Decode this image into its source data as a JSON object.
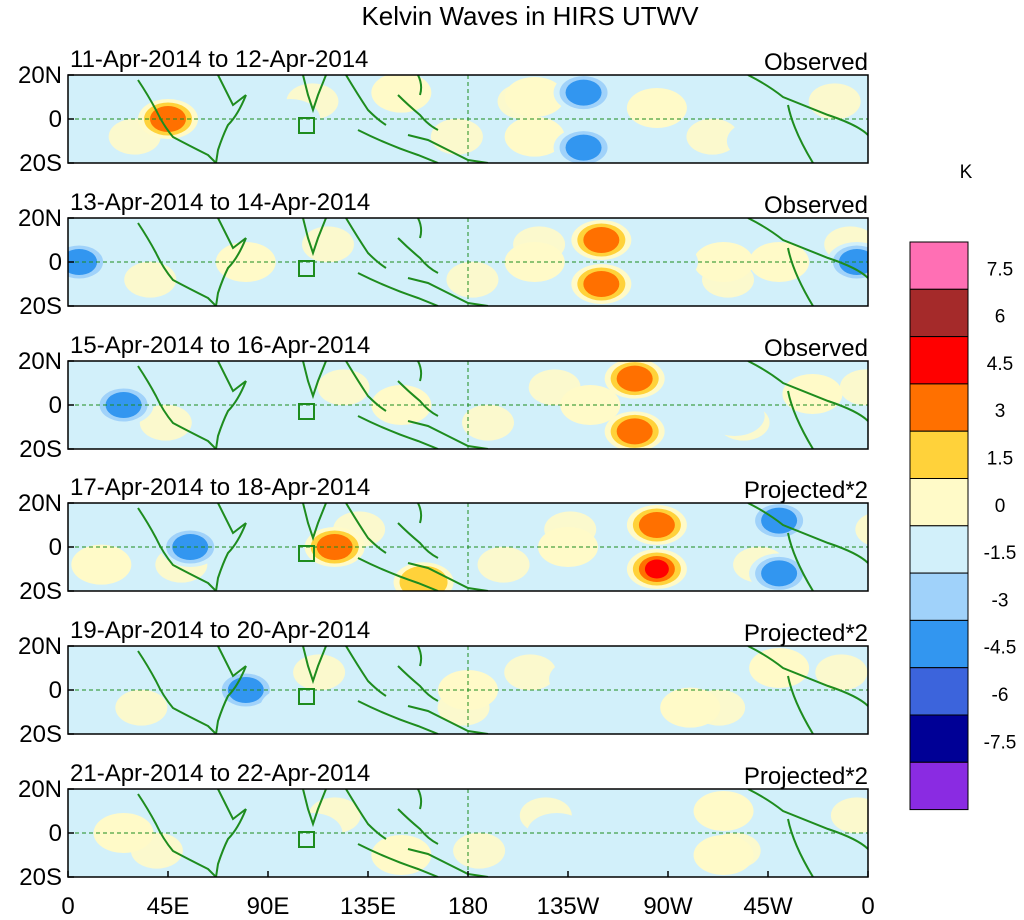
{
  "chart_data": {
    "type": "heatmap",
    "title": "Kelvin Waves in HIRS UTWV",
    "units_label": "K",
    "x_ticks": [
      "0",
      "45E",
      "90E",
      "135E",
      "180",
      "135W",
      "90W",
      "45W",
      "0"
    ],
    "y_ticks": [
      "20N",
      "0",
      "20S"
    ],
    "xlim": [
      0,
      360
    ],
    "ylim": [
      -20,
      20
    ],
    "colorbar": {
      "levels": [
        "7.5",
        "6",
        "4.5",
        "3",
        "1.5",
        "0",
        "-1.5",
        "-3",
        "-4.5",
        "-6",
        "-7.5"
      ],
      "colors": [
        "#ff6fb4",
        "#a52a2a",
        "#ff0000",
        "#ff7000",
        "#ffd23a",
        "#fffac8",
        "#d2f0fa",
        "#a0d2fa",
        "#3296f0",
        "#3c64dc",
        "#000096",
        "#8a2be2"
      ]
    },
    "panels": [
      {
        "date": "11-Apr-2014 to 12-Apr-2014",
        "kind": "Observed",
        "features": [
          {
            "lon": 45,
            "lat": 0,
            "value": 5.0
          },
          {
            "lon": 150,
            "lat": 12,
            "value": 2.0
          },
          {
            "lon": 210,
            "lat": 10,
            "value": 2.0
          },
          {
            "lon": 210,
            "lat": -8,
            "value": 2.0
          },
          {
            "lon": 232,
            "lat": 12,
            "value": -4.0
          },
          {
            "lon": 232,
            "lat": -13,
            "value": -4.0
          },
          {
            "lon": 265,
            "lat": 5,
            "value": 1.5
          },
          {
            "lon": 100,
            "lat": 0,
            "value": -1.5
          },
          {
            "lon": 310,
            "lat": -10,
            "value": -1.5
          }
        ]
      },
      {
        "date": "13-Apr-2014 to 14-Apr-2014",
        "kind": "Observed",
        "features": [
          {
            "lon": 5,
            "lat": 0,
            "value": -4.5
          },
          {
            "lon": 355,
            "lat": 0,
            "value": -4.5
          },
          {
            "lon": 80,
            "lat": 0,
            "value": 1.5
          },
          {
            "lon": 240,
            "lat": 10,
            "value": 4.5
          },
          {
            "lon": 240,
            "lat": -10,
            "value": 4.5
          },
          {
            "lon": 210,
            "lat": 0,
            "value": 2.0
          },
          {
            "lon": 295,
            "lat": 0,
            "value": 2.0
          },
          {
            "lon": 270,
            "lat": 0,
            "value": -2.0
          },
          {
            "lon": 320,
            "lat": 0,
            "value": 2.0
          }
        ]
      },
      {
        "date": "15-Apr-2014 to 16-Apr-2014",
        "kind": "Observed",
        "features": [
          {
            "lon": 25,
            "lat": 0,
            "value": -4.0
          },
          {
            "lon": 255,
            "lat": 12,
            "value": 4.5
          },
          {
            "lon": 255,
            "lat": -12,
            "value": 4.5
          },
          {
            "lon": 235,
            "lat": 0,
            "value": 2.0
          },
          {
            "lon": 335,
            "lat": 5,
            "value": 2.0
          },
          {
            "lon": 300,
            "lat": -5,
            "value": -2.0
          },
          {
            "lon": 150,
            "lat": 0,
            "value": 1.5
          }
        ]
      },
      {
        "date": "17-Apr-2014 to 18-Apr-2014",
        "kind": "Projected*2",
        "features": [
          {
            "lon": 55,
            "lat": 0,
            "value": -4.5
          },
          {
            "lon": 120,
            "lat": 0,
            "value": 4.5
          },
          {
            "lon": 265,
            "lat": 10,
            "value": 4.5
          },
          {
            "lon": 265,
            "lat": -10,
            "value": 5.5
          },
          {
            "lon": 320,
            "lat": 12,
            "value": -4.5
          },
          {
            "lon": 320,
            "lat": -12,
            "value": -4.5
          },
          {
            "lon": 160,
            "lat": -16,
            "value": 3.0
          },
          {
            "lon": 15,
            "lat": -8,
            "value": 2.0
          },
          {
            "lon": 225,
            "lat": 0,
            "value": 1.5
          }
        ]
      },
      {
        "date": "19-Apr-2014 to 20-Apr-2014",
        "kind": "Projected*2",
        "features": [
          {
            "lon": 80,
            "lat": 0,
            "value": -4.0
          },
          {
            "lon": 100,
            "lat": -8,
            "value": -2.0
          },
          {
            "lon": 280,
            "lat": -8,
            "value": 2.0
          },
          {
            "lon": 320,
            "lat": 10,
            "value": 1.5
          },
          {
            "lon": 230,
            "lat": 5,
            "value": -1.5
          },
          {
            "lon": 180,
            "lat": 0,
            "value": 1.5
          }
        ]
      },
      {
        "date": "21-Apr-2014 to 22-Apr-2014",
        "kind": "Projected*2",
        "features": [
          {
            "lon": 25,
            "lat": 0,
            "value": 2.0
          },
          {
            "lon": 110,
            "lat": 0,
            "value": -2.0
          },
          {
            "lon": 295,
            "lat": 10,
            "value": 2.0
          },
          {
            "lon": 295,
            "lat": -10,
            "value": 2.0
          },
          {
            "lon": 220,
            "lat": 0,
            "value": -1.5
          },
          {
            "lon": 150,
            "lat": -10,
            "value": 1.5
          }
        ]
      }
    ]
  }
}
